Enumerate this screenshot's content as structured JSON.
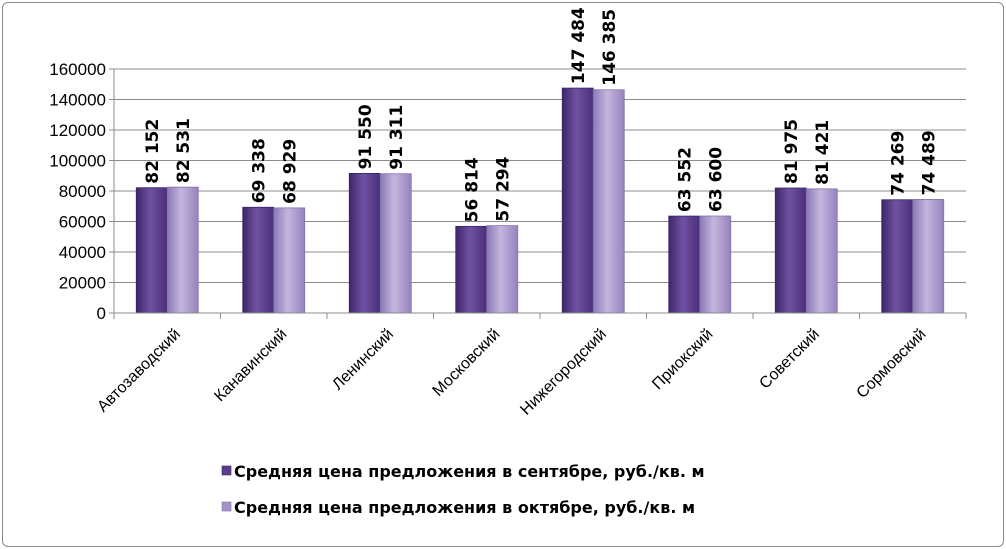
{
  "chart_data": {
    "type": "bar",
    "categories": [
      "Автозаводский",
      "Канавинский",
      "Ленинский",
      "Московский",
      "Нижегородский",
      "Приокский",
      "Советский",
      "Сормовский"
    ],
    "series": [
      {
        "name": "Средняя цена предложения в сентябре, руб./кв. м",
        "values": [
          82152,
          69338,
          91550,
          56814,
          147484,
          63552,
          81975,
          74269
        ],
        "labels": [
          "82 152",
          "69 338",
          "91 550",
          "56 814",
          "147 484",
          "63 552",
          "81 975",
          "74 269"
        ],
        "color": "#5b3f8c"
      },
      {
        "name": "Средняя цена предложения в октябре, руб./кв. м",
        "values": [
          82531,
          68929,
          91311,
          57294,
          146385,
          63600,
          81421,
          74489
        ],
        "labels": [
          "82 531",
          "68 929",
          "91 311",
          "57 294",
          "146 385",
          "63 600",
          "81 421",
          "74 489"
        ],
        "color": "#a592c7"
      }
    ],
    "yticks": [
      "0",
      "20000",
      "40000",
      "60000",
      "80000",
      "100000",
      "120000",
      "140000",
      "160000"
    ],
    "ylim": [
      0,
      160000
    ],
    "grid": true,
    "legend_position": "bottom"
  }
}
